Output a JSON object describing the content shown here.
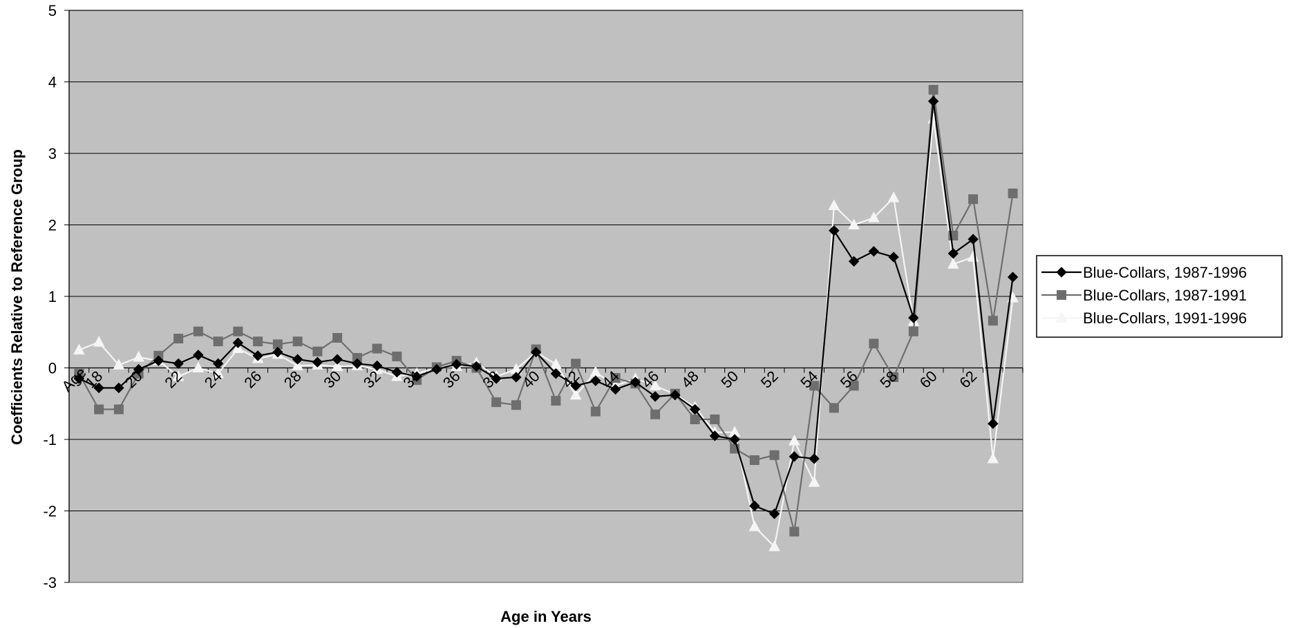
{
  "chart_data": {
    "type": "line",
    "xlabel": "Age in Years",
    "ylabel": "Coefficients Relative to Reference Group",
    "ylim": [
      -3,
      5
    ],
    "yticks": [
      -3,
      -2,
      -1,
      0,
      1,
      2,
      3,
      4,
      5
    ],
    "x": [
      "Age",
      "18",
      "19",
      "20",
      "21",
      "22",
      "23",
      "24",
      "25",
      "26",
      "27",
      "28",
      "29",
      "30",
      "31",
      "32",
      "33",
      "34",
      "35",
      "36",
      "37",
      "38",
      "39",
      "40",
      "41",
      "42",
      "43",
      "44",
      "45",
      "46",
      "47",
      "48",
      "49",
      "50",
      "51",
      "52",
      "53",
      "54",
      "55",
      "56",
      "57",
      "58",
      "59",
      "60",
      "61",
      "62",
      "63",
      "64"
    ],
    "x_tick_labels": [
      "Age",
      "18",
      "",
      "20",
      "",
      "22",
      "",
      "24",
      "",
      "26",
      "",
      "28",
      "",
      "30",
      "",
      "32",
      "",
      "34",
      "",
      "36",
      "",
      "38",
      "",
      "40",
      "",
      "42",
      "",
      "44",
      "",
      "46",
      "",
      "48",
      "",
      "50",
      "",
      "52",
      "",
      "54",
      "",
      "56",
      "",
      "58",
      "",
      "60",
      "",
      "62",
      "",
      ""
    ],
    "grid": true,
    "legend_position": "right",
    "plot_background": "#c0c0c0",
    "series": [
      {
        "name": "Blue-Collars, 1987-1996",
        "color": "#000000",
        "marker": "diamond",
        "values": [
          -0.15,
          -0.28,
          -0.28,
          -0.02,
          0.1,
          0.06,
          0.18,
          0.06,
          0.35,
          0.17,
          0.22,
          0.12,
          0.08,
          0.12,
          0.06,
          0.03,
          -0.06,
          -0.12,
          -0.02,
          0.05,
          0.02,
          -0.15,
          -0.13,
          0.22,
          -0.08,
          -0.25,
          -0.18,
          -0.3,
          -0.2,
          -0.4,
          -0.38,
          -0.58,
          -0.95,
          -1.0,
          -1.93,
          -2.04,
          -1.24,
          -1.27,
          1.92,
          1.49,
          1.63,
          1.55,
          0.7,
          3.73,
          1.6,
          1.8,
          -0.78,
          1.27
        ]
      },
      {
        "name": "Blue-Collars, 1987-1991",
        "color": "#6e6e6e",
        "marker": "square",
        "values": [
          -0.08,
          -0.58,
          -0.58,
          -0.08,
          0.17,
          0.41,
          0.51,
          0.37,
          0.51,
          0.37,
          0.33,
          0.37,
          0.23,
          0.42,
          0.14,
          0.27,
          0.16,
          -0.17,
          0.01,
          0.1,
          0.0,
          -0.48,
          -0.52,
          0.26,
          -0.46,
          0.06,
          -0.61,
          -0.14,
          -0.22,
          -0.65,
          -0.36,
          -0.72,
          -0.72,
          -1.13,
          -1.29,
          -1.22,
          -2.29,
          -0.25,
          -0.56,
          -0.25,
          0.34,
          -0.13,
          0.51,
          3.89,
          1.85,
          2.36,
          0.66,
          2.44
        ]
      },
      {
        "name": "Blue-Collars, 1991-1996",
        "color": "#f5f5f5",
        "marker": "triangle",
        "values": [
          0.25,
          0.36,
          0.04,
          0.15,
          0.1,
          -0.12,
          0.0,
          -0.08,
          0.27,
          0.13,
          0.19,
          0.03,
          0.04,
          0.02,
          0.03,
          -0.02,
          -0.12,
          -0.08,
          0.0,
          0.02,
          0.07,
          -0.12,
          -0.02,
          0.22,
          0.05,
          -0.38,
          -0.06,
          -0.25,
          -0.15,
          -0.25,
          -0.37,
          -0.55,
          -0.9,
          -0.9,
          -2.22,
          -2.5,
          -1.02,
          -1.6,
          2.27,
          2.0,
          2.1,
          2.38,
          0.65,
          3.48,
          1.45,
          1.55,
          -1.27,
          0.98
        ]
      }
    ]
  }
}
